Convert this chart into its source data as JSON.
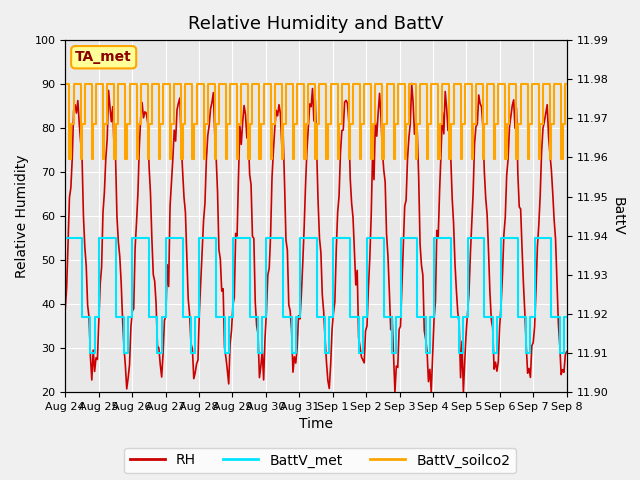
{
  "title": "Relative Humidity and BattV",
  "xlabel": "Time",
  "ylabel_left": "Relative Humidity",
  "ylabel_right": "BattV",
  "annotation_text": "TA_met",
  "ylim_left": [
    20,
    100
  ],
  "ylim_right": [
    11.9,
    11.99
  ],
  "yticks_left": [
    20,
    30,
    40,
    50,
    60,
    70,
    80,
    90,
    100
  ],
  "yticks_right": [
    11.9,
    11.91,
    11.92,
    11.93,
    11.94,
    11.95,
    11.96,
    11.97,
    11.98,
    11.99
  ],
  "x_labels": [
    "Aug 24",
    "Aug 25",
    "Aug 26",
    "Aug 27",
    "Aug 28",
    "Aug 29",
    "Aug 30",
    "Aug 31",
    "Sep 1",
    "Sep 2",
    "Sep 3",
    "Sep 4",
    "Sep 5",
    "Sep 6",
    "Sep 7",
    "Sep 8"
  ],
  "color_RH": "#cc0000",
  "color_BattV_met": "#00e5ff",
  "color_BattV_soilco2": "#ffa500",
  "bg_color": "#e8e8e8",
  "grid_color": "#ffffff",
  "title_fontsize": 13,
  "axis_label_fontsize": 10,
  "tick_fontsize": 8,
  "legend_fontsize": 10,
  "annotation_fontsize": 10
}
